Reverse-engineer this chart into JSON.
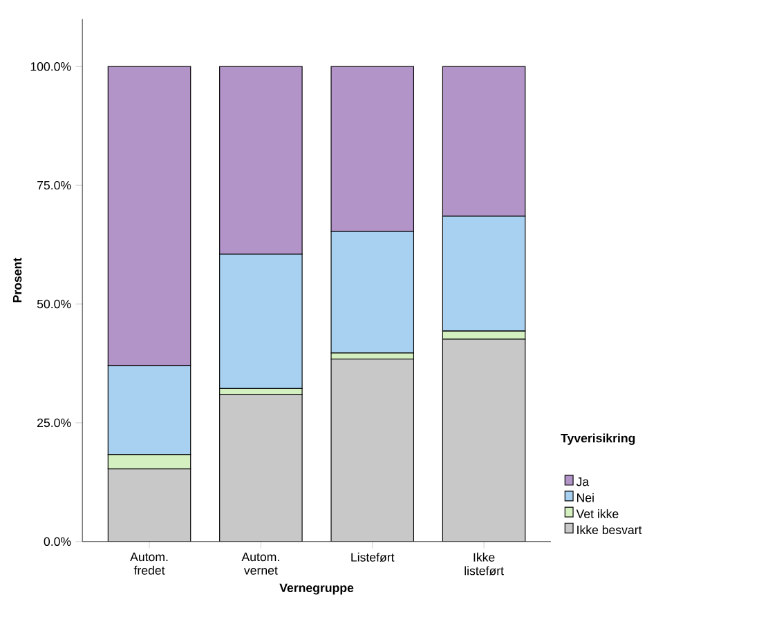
{
  "chart_data": {
    "type": "bar",
    "stacked": true,
    "xlabel": "Vernegruppe",
    "ylabel": "Prosent",
    "legend_title": "Tyverisikring",
    "legend": "right",
    "categories": [
      "Autom. fredet",
      "Autom. vernet",
      "Listeført",
      "Ikke listeført"
    ],
    "ylim": [
      0,
      110
    ],
    "yticks": [
      {
        "value": 0,
        "label": "0.0%"
      },
      {
        "value": 25,
        "label": "25.0%"
      },
      {
        "value": 50,
        "label": "50.0%"
      },
      {
        "value": 75,
        "label": "75.0%"
      },
      {
        "value": 100,
        "label": "100.0%"
      }
    ],
    "series": [
      {
        "name": "Ikke besvart",
        "color": "#c8c8c8",
        "values": [
          15.3,
          31.0,
          38.4,
          42.6
        ]
      },
      {
        "name": "Vet ikke",
        "color": "#d4f0c0",
        "values": [
          3.0,
          1.2,
          1.3,
          1.7
        ]
      },
      {
        "name": "Nei",
        "color": "#a8d0f0",
        "values": [
          18.7,
          28.3,
          25.6,
          24.2
        ]
      },
      {
        "name": "Ja",
        "color": "#b294c8",
        "values": [
          63.0,
          39.5,
          34.7,
          31.5
        ]
      }
    ]
  }
}
